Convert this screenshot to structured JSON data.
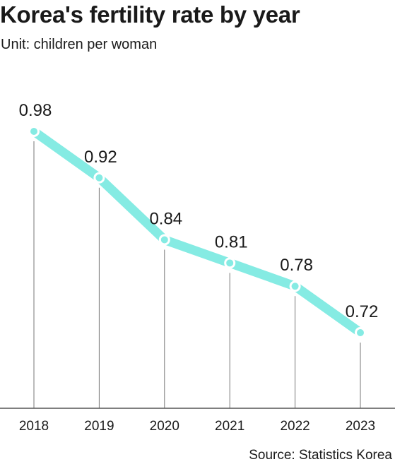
{
  "title": "Korea's fertility rate by year",
  "subtitle": "Unit: children per woman",
  "source": "Source: Statistics Korea",
  "colors": {
    "line": "#85ebe3",
    "marker_fill": "#85ebe3",
    "marker_stroke": "#ffffff",
    "drop_line": "#777777",
    "axis": "#555555",
    "text": "#1a1a1a"
  },
  "chart_data": {
    "type": "line",
    "title": "Korea's fertility rate by year",
    "subtitle": "Unit: children per woman",
    "xlabel": "",
    "ylabel": "",
    "categories": [
      "2018",
      "2019",
      "2020",
      "2021",
      "2022",
      "2023"
    ],
    "values": [
      0.98,
      0.92,
      0.84,
      0.81,
      0.78,
      0.72
    ],
    "value_labels": [
      "0.98",
      "0.92",
      "0.84",
      "0.81",
      "0.78",
      "0.72"
    ],
    "grid": false,
    "legend": "none"
  }
}
